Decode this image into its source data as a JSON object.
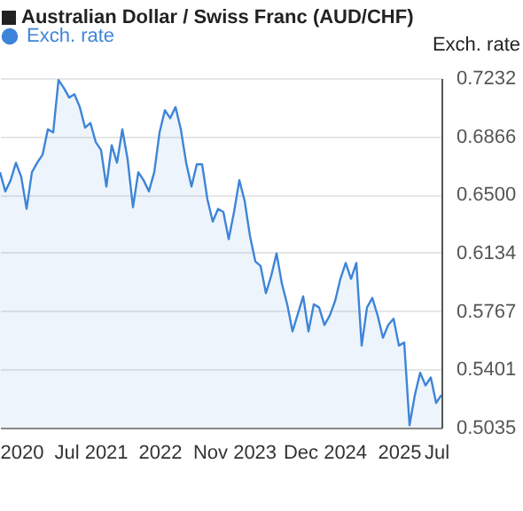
{
  "chart_data": {
    "type": "area",
    "title": "Australian Dollar / Swiss Franc (AUD/CHF)",
    "ylabel": "Exch. rate",
    "categories": [
      null,
      null,
      null,
      null,
      "2020",
      null,
      null,
      null,
      null,
      null,
      null,
      null,
      null,
      null,
      null,
      null,
      null,
      "Jul 2021",
      null,
      null,
      null,
      null,
      null,
      null,
      null,
      null,
      null,
      null,
      null,
      null,
      "2022",
      null,
      null,
      null,
      null,
      null,
      null,
      null,
      null,
      null,
      null,
      null,
      null,
      null,
      "Nov 2023",
      null,
      null,
      null,
      null,
      null,
      null,
      null,
      null,
      null,
      null,
      null,
      null,
      null,
      null,
      null,
      null,
      "Dec 2024",
      null,
      null,
      null,
      null,
      null,
      null,
      null,
      null,
      null,
      null,
      null,
      null,
      null,
      "2025",
      null,
      null,
      null,
      null,
      null,
      null,
      "Jul",
      null
    ],
    "series": [
      {
        "name": "Exch. rate",
        "color": "#3d85d8",
        "values": [
          0.664,
          0.652,
          0.659,
          0.67,
          0.661,
          0.641,
          0.664,
          0.67,
          0.675,
          0.691,
          0.689,
          0.722,
          0.717,
          0.711,
          0.713,
          0.705,
          0.692,
          0.695,
          0.683,
          0.678,
          0.655,
          0.681,
          0.67,
          0.691,
          0.672,
          0.642,
          0.664,
          0.659,
          0.652,
          0.664,
          0.689,
          0.703,
          0.698,
          0.705,
          0.691,
          0.67,
          0.655,
          0.669,
          0.669,
          0.647,
          0.633,
          0.641,
          0.639,
          0.622,
          0.639,
          0.659,
          0.646,
          0.624,
          0.608,
          0.605,
          0.588,
          0.599,
          0.613,
          0.594,
          0.581,
          0.564,
          0.575,
          0.586,
          0.564,
          0.581,
          0.579,
          0.568,
          0.574,
          0.583,
          0.597,
          0.607,
          0.597,
          0.607,
          0.555,
          0.579,
          0.585,
          0.574,
          0.56,
          0.568,
          0.572,
          0.555,
          0.557,
          0.505,
          0.524,
          0.538,
          0.53,
          0.535,
          0.519,
          0.524
        ]
      }
    ],
    "ylim": [
      0.5035,
      0.7232
    ],
    "yticks": [
      {
        "value": 0.5035,
        "label": "0.5035"
      },
      {
        "value": 0.5401,
        "label": "0.5401"
      },
      {
        "value": 0.5767,
        "label": "0.5767"
      },
      {
        "value": 0.6134,
        "label": "0.6134"
      },
      {
        "value": 0.65,
        "label": "0.6500"
      },
      {
        "value": 0.6866,
        "label": "0.6866"
      },
      0.7232
    ],
    "grid": "y",
    "legend": "top left"
  }
}
